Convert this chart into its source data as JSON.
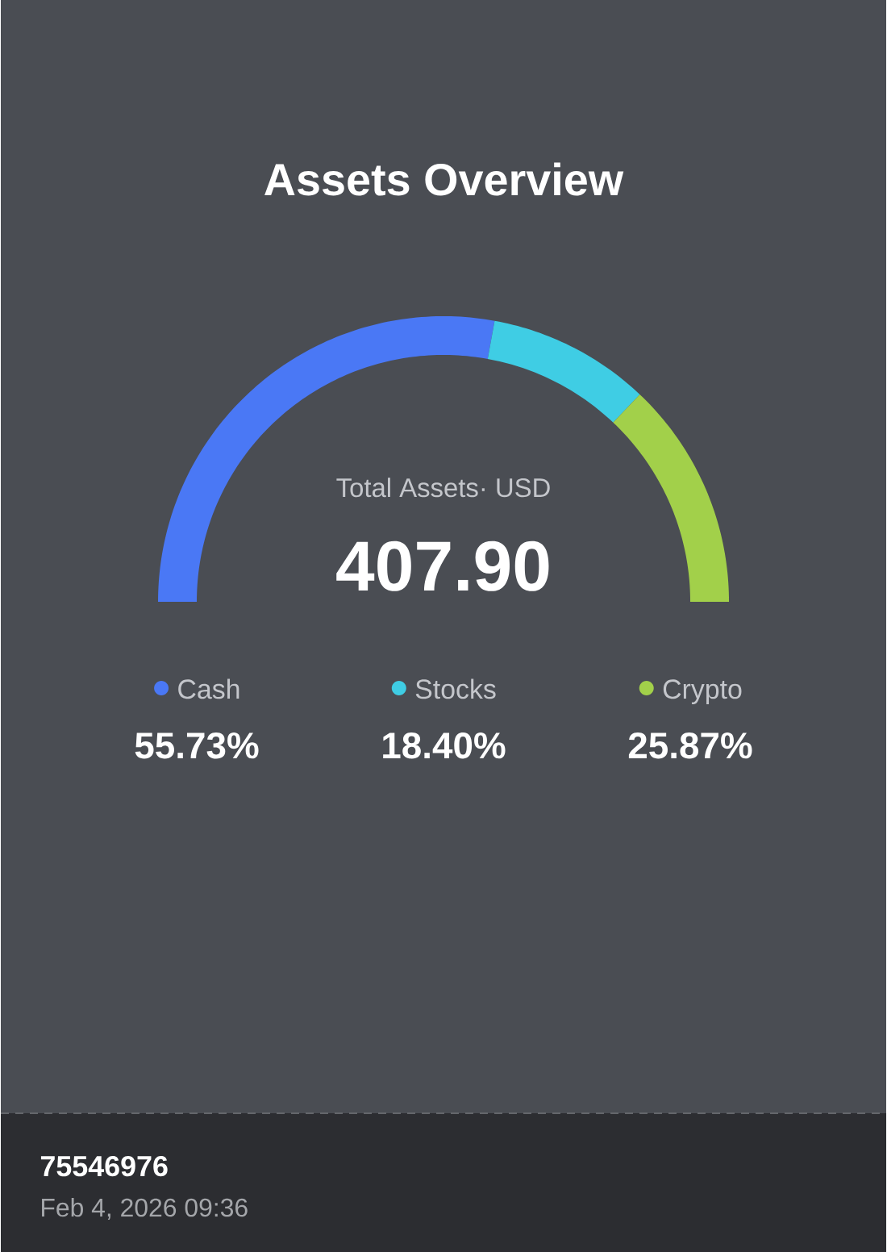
{
  "chart_data": {
    "type": "donut",
    "title": "Assets Overview",
    "categories": [
      "Cash",
      "Stocks",
      "Crypto"
    ],
    "values": [
      55.73,
      18.4,
      25.87
    ],
    "colors": [
      "#4a78f5",
      "#3fcde4",
      "#a2d04a"
    ],
    "value_labels": [
      "55.73%",
      "18.40%",
      "25.87%"
    ],
    "legend": "bottom",
    "annotations": [
      "Total Assets· USD",
      "407.90",
      "75546976",
      "Feb 4, 2026 09:36"
    ]
  }
}
